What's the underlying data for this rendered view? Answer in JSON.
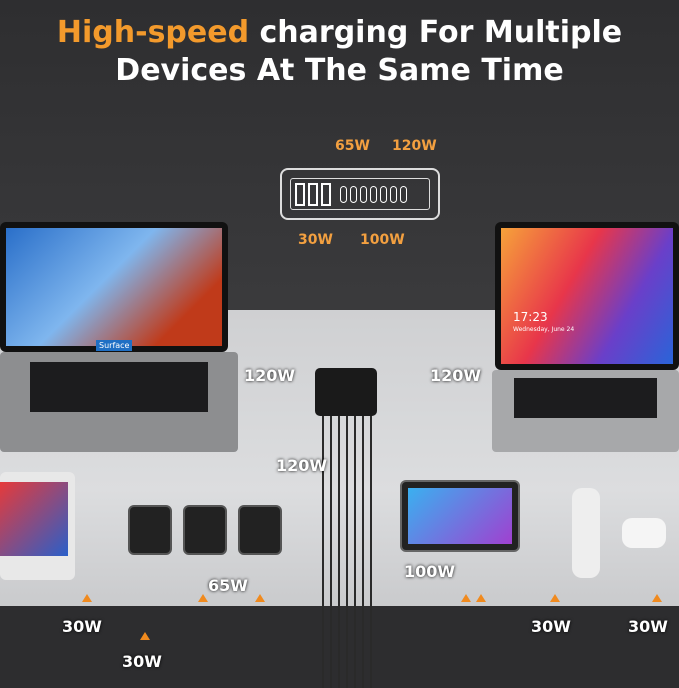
{
  "headline": {
    "highlight": "High-speed",
    "rest_line1": " charging For Multiple",
    "line2": "Devices At The Same Time",
    "highlight_color": "#f39a2c"
  },
  "port_diagram": {
    "labels": {
      "top_left": "65W",
      "top_right": "120W",
      "bottom_left": "30W",
      "bottom_right": "100W"
    },
    "usb_a_ports": 3,
    "usb_c_ports": 7
  },
  "laptop_left": {
    "screen_text": "Surface"
  },
  "laptop_right": {
    "time": "17:23",
    "date": "Wednesday, June 24"
  },
  "power_labels": {
    "left_laptop": "120W",
    "right_laptop": "120W",
    "center": "120W",
    "phone_65": "65W",
    "tablet": "100W",
    "switch": "30W",
    "phones": "30W",
    "watch": "30W",
    "earbuds": "30W"
  }
}
